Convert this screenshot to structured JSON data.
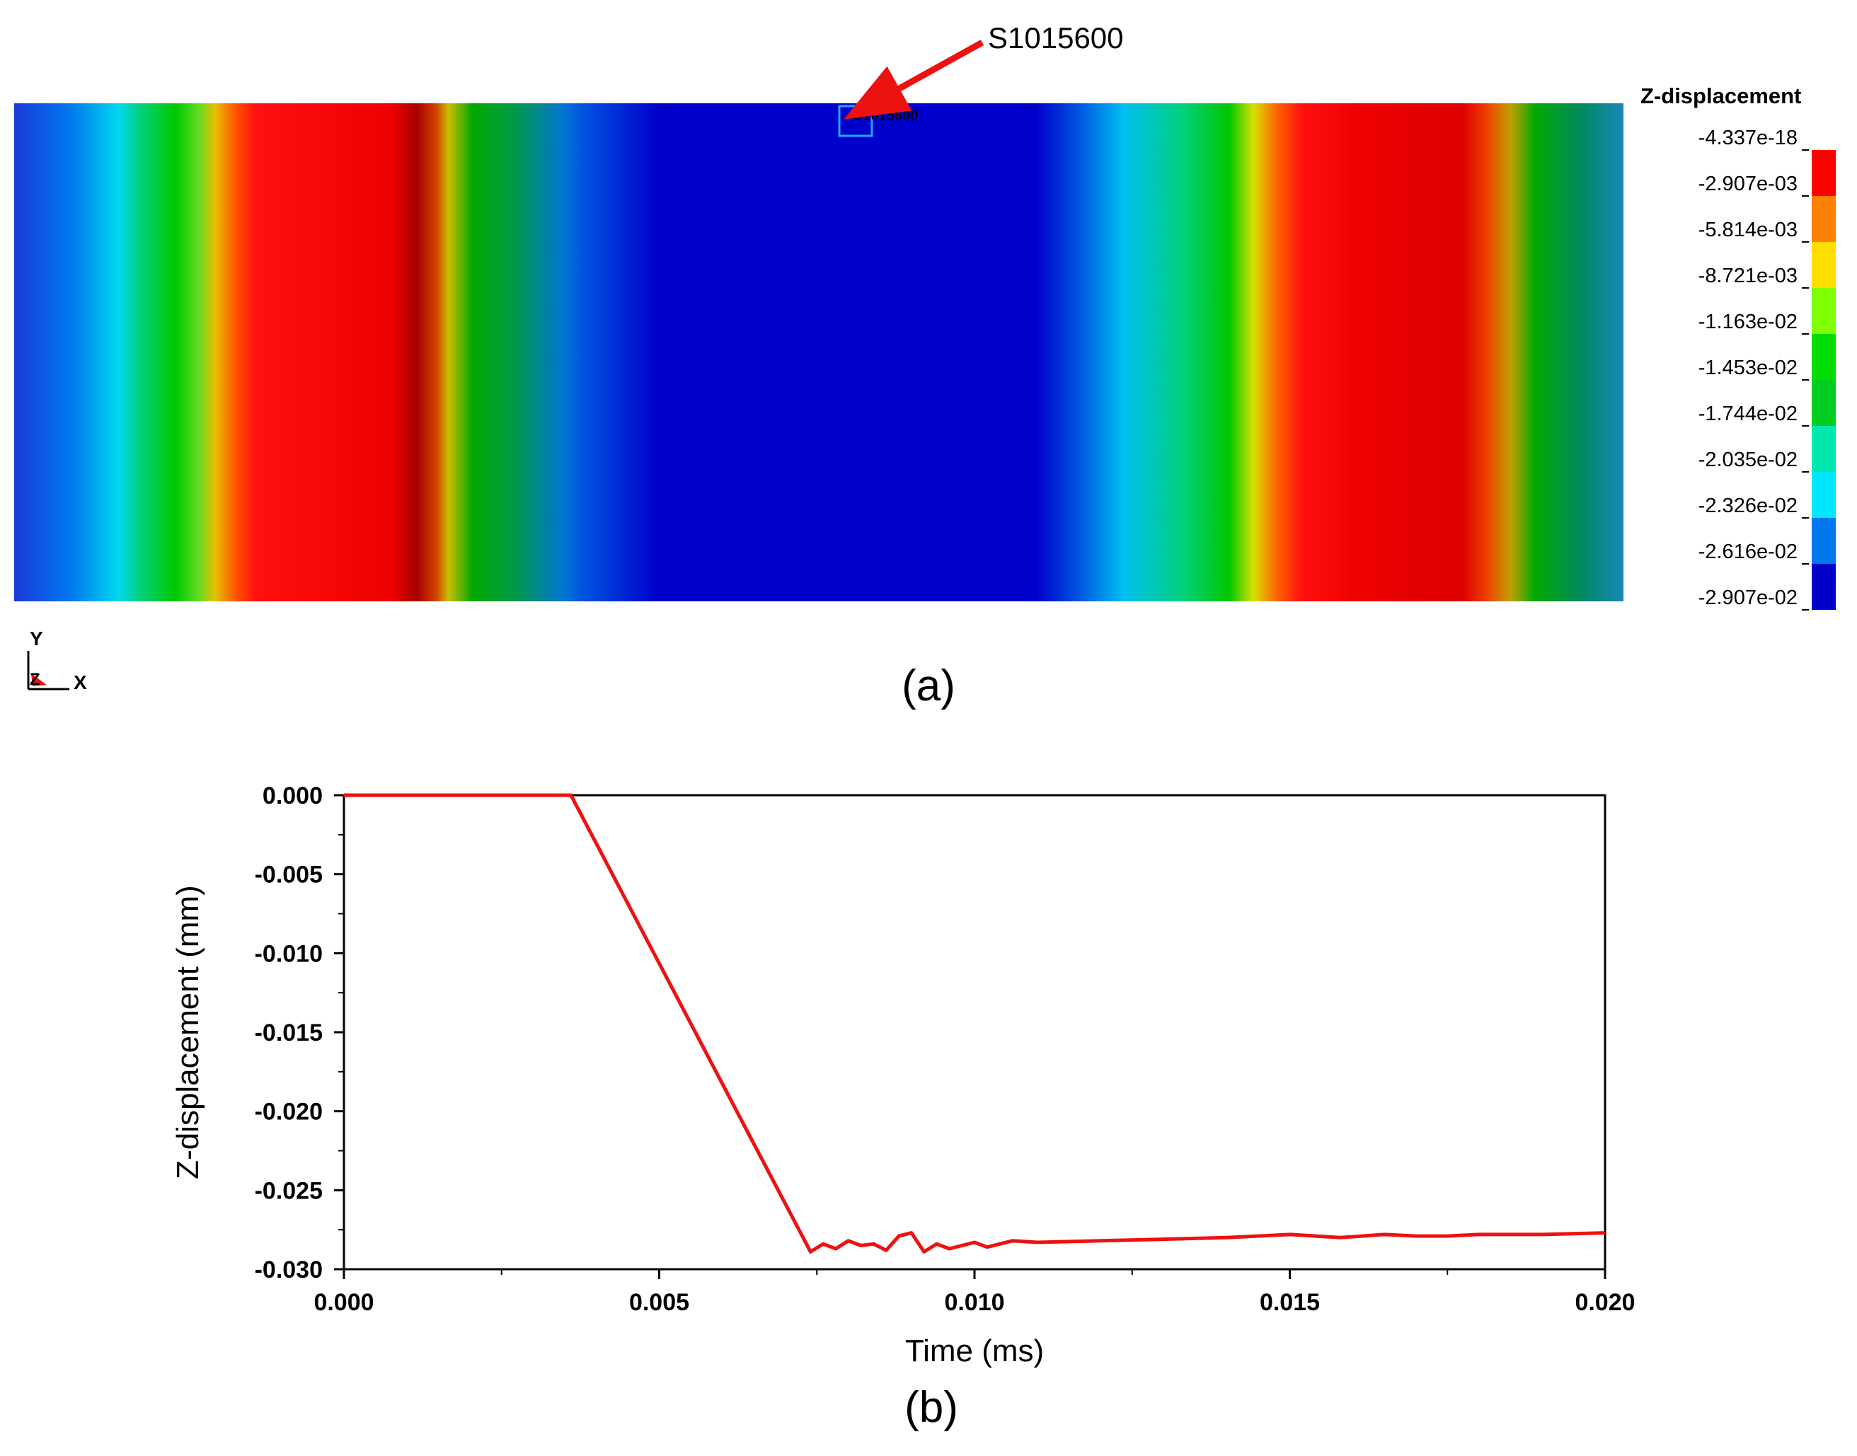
{
  "panel_a": {
    "label": "(a)",
    "probe_label": "S1015600",
    "probe_label_small": "S1015600",
    "legend": {
      "title": "Z-displacement",
      "levels": [
        "-4.337e-18",
        "-2.907e-03",
        "-5.814e-03",
        "-8.721e-03",
        "-1.163e-02",
        "-1.453e-02",
        "-1.744e-02",
        "-2.035e-02",
        "-2.326e-02",
        "-2.616e-02",
        "-2.907e-02"
      ],
      "colors": [
        "#ff0000",
        "#ff7f00",
        "#ffdd00",
        "#80ff00",
        "#00dd00",
        "#00cc22",
        "#00e8b0",
        "#00e8ff",
        "#0077ee",
        "#0000cc"
      ]
    },
    "triad": {
      "y": "Y",
      "z": "Z",
      "x": "X"
    },
    "field_bands": [
      {
        "pos": 0.0,
        "color": "#1a3ad8"
      },
      {
        "pos": 0.035,
        "color": "#0077ee"
      },
      {
        "pos": 0.065,
        "color": "#00d8f0"
      },
      {
        "pos": 0.08,
        "color": "#00d070"
      },
      {
        "pos": 0.1,
        "color": "#00c800"
      },
      {
        "pos": 0.115,
        "color": "#66dd22"
      },
      {
        "pos": 0.125,
        "color": "#e8c000"
      },
      {
        "pos": 0.138,
        "color": "#ff5000"
      },
      {
        "pos": 0.15,
        "color": "#ff1010"
      },
      {
        "pos": 0.235,
        "color": "#ee0000"
      },
      {
        "pos": 0.25,
        "color": "#a80000"
      },
      {
        "pos": 0.262,
        "color": "#d04000"
      },
      {
        "pos": 0.27,
        "color": "#c8c000"
      },
      {
        "pos": 0.285,
        "color": "#00a800"
      },
      {
        "pos": 0.31,
        "color": "#009944"
      },
      {
        "pos": 0.34,
        "color": "#0078d0"
      },
      {
        "pos": 0.355,
        "color": "#0050e0"
      },
      {
        "pos": 0.4,
        "color": "#0000cc"
      },
      {
        "pos": 0.635,
        "color": "#0000cc"
      },
      {
        "pos": 0.66,
        "color": "#0050e0"
      },
      {
        "pos": 0.69,
        "color": "#00c0f0"
      },
      {
        "pos": 0.725,
        "color": "#00d080"
      },
      {
        "pos": 0.755,
        "color": "#00c800"
      },
      {
        "pos": 0.77,
        "color": "#d8e000"
      },
      {
        "pos": 0.785,
        "color": "#ff6000"
      },
      {
        "pos": 0.8,
        "color": "#ff1010"
      },
      {
        "pos": 0.835,
        "color": "#ee0000"
      },
      {
        "pos": 0.9,
        "color": "#dd0000"
      },
      {
        "pos": 0.915,
        "color": "#ee4000"
      },
      {
        "pos": 0.93,
        "color": "#c0a000"
      },
      {
        "pos": 0.945,
        "color": "#00a800"
      },
      {
        "pos": 0.975,
        "color": "#008866"
      },
      {
        "pos": 1.0,
        "color": "#1a88b8"
      }
    ]
  },
  "panel_b": {
    "label": "(b)"
  },
  "chart_data": {
    "type": "line",
    "title": "",
    "xlabel": "Time (ms)",
    "ylabel": "Z-displacement (mm)",
    "xlim": [
      0.0,
      0.02
    ],
    "ylim": [
      -0.03,
      0.0
    ],
    "x_ticks": [
      "0.000",
      "0.005",
      "0.010",
      "0.015",
      "0.020"
    ],
    "y_ticks": [
      "0.000",
      "-0.005",
      "-0.010",
      "-0.015",
      "-0.020",
      "-0.025",
      "-0.030"
    ],
    "line_color": "#ee1111",
    "series": [
      {
        "name": "S1015600",
        "x": [
          0.0,
          0.0036,
          0.0074,
          0.0076,
          0.0078,
          0.008,
          0.0082,
          0.0084,
          0.0086,
          0.0088,
          0.009,
          0.0092,
          0.0094,
          0.0096,
          0.0098,
          0.01,
          0.0102,
          0.0104,
          0.0106,
          0.011,
          0.012,
          0.013,
          0.014,
          0.015,
          0.0158,
          0.0165,
          0.017,
          0.0175,
          0.018,
          0.0185,
          0.019,
          0.02
        ],
        "values": [
          0.0,
          0.0,
          -0.0289,
          -0.0284,
          -0.0287,
          -0.0282,
          -0.0285,
          -0.0284,
          -0.0288,
          -0.0279,
          -0.0277,
          -0.0289,
          -0.0284,
          -0.0287,
          -0.0285,
          -0.0283,
          -0.0286,
          -0.0284,
          -0.0282,
          -0.0283,
          -0.0282,
          -0.0281,
          -0.028,
          -0.0278,
          -0.028,
          -0.0278,
          -0.0279,
          -0.0279,
          -0.0278,
          -0.0278,
          -0.0278,
          -0.0277
        ]
      }
    ]
  }
}
